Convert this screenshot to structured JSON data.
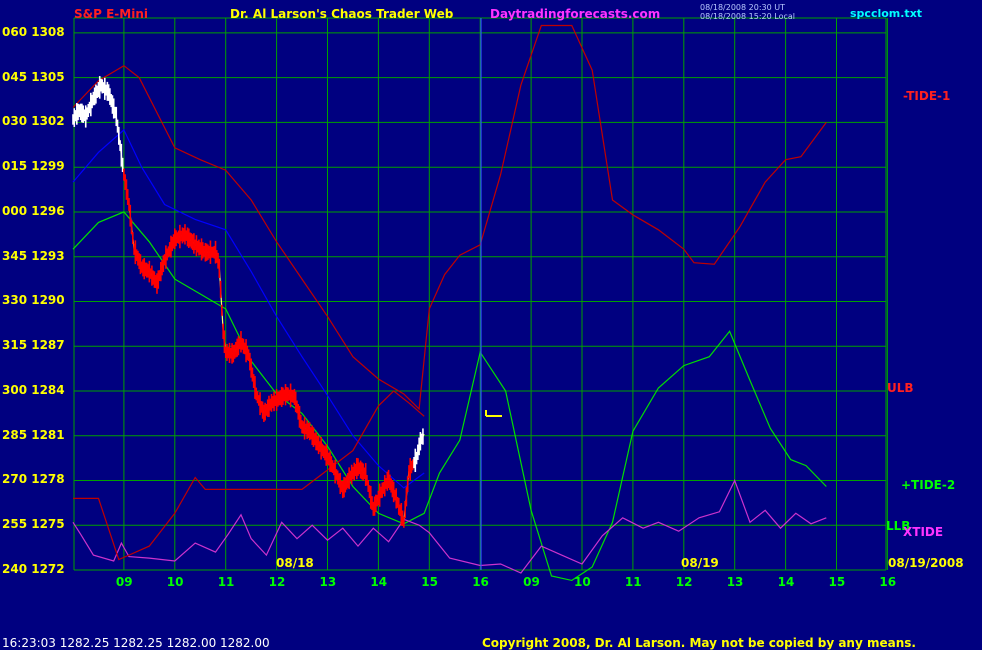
{
  "header": {
    "instrument": "S&P E-Mini",
    "title": "Dr. Al Larson's Chaos Trader Web",
    "site": "Daytradingforecasts.com",
    "stamp1": "08/18/2008 20:30 UT",
    "stamp2": "08/18/2008 15:20 Local",
    "filename": "spcclom.txt"
  },
  "footer": {
    "quote": "16:23:03  1282.25 1282.25 1282.00 1282.00",
    "copyright": "Copyright 2008, Dr. Al Larson. May not be copied by any means."
  },
  "labels": {
    "tide1": "-TIDE-1",
    "ulb": "ULB",
    "tide2": "+TIDE-2",
    "llb": "LLB",
    "xtide": "XTIDE",
    "date1": "08/18",
    "date2": "08/19",
    "date3": "08/19/2008"
  },
  "colors": {
    "background": "#000080",
    "grid": "#00a000",
    "price": "#ff0000",
    "tide1": "#c00000",
    "tide2": "#00e000",
    "xtide": "#cc33cc",
    "ma": "#0000ff",
    "label_yellow": "#ffff00"
  },
  "chart_data": {
    "type": "line",
    "title": "S&P E-Mini",
    "ylabels": [
      {
        "angle": "060",
        "price": 1308
      },
      {
        "angle": "045",
        "price": 1305
      },
      {
        "angle": "030",
        "price": 1302
      },
      {
        "angle": "015",
        "price": 1299
      },
      {
        "angle": "000",
        "price": 1296
      },
      {
        "angle": "345",
        "price": 1293
      },
      {
        "angle": "330",
        "price": 1290
      },
      {
        "angle": "315",
        "price": 1287
      },
      {
        "angle": "300",
        "price": 1284
      },
      {
        "angle": "285",
        "price": 1281
      },
      {
        "angle": "270",
        "price": 1278
      },
      {
        "angle": "255",
        "price": 1275
      },
      {
        "angle": "240",
        "price": 1272
      }
    ],
    "ylim": [
      1272,
      1308
    ],
    "xlabels": [
      "09",
      "10",
      "11",
      "12",
      "13",
      "14",
      "15",
      "16",
      "09",
      "10",
      "11",
      "12",
      "13",
      "14",
      "15",
      "16"
    ],
    "series": [
      {
        "name": "price",
        "values": [
          [
            0,
            1302.2
          ],
          [
            0.12,
            1302.8
          ],
          [
            0.25,
            1302.4
          ],
          [
            0.4,
            1303.6
          ],
          [
            0.55,
            1304.5
          ],
          [
            0.7,
            1304
          ],
          [
            0.85,
            1302.4
          ],
          [
            1,
            1298.5
          ],
          [
            1.1,
            1296.5
          ],
          [
            1.2,
            1293.5
          ],
          [
            1.35,
            1292.3
          ],
          [
            1.5,
            1292
          ],
          [
            1.65,
            1291.2
          ],
          [
            1.8,
            1292.8
          ],
          [
            2,
            1294.2
          ],
          [
            2.2,
            1294.5
          ],
          [
            2.4,
            1293.8
          ],
          [
            2.6,
            1293.3
          ],
          [
            2.8,
            1293.3
          ],
          [
            2.87,
            1292.5
          ],
          [
            2.95,
            1288
          ],
          [
            3,
            1286.6
          ],
          [
            3.15,
            1286.5
          ],
          [
            3.3,
            1287.3
          ],
          [
            3.45,
            1286.4
          ],
          [
            3.6,
            1283.8
          ],
          [
            3.75,
            1282.5
          ],
          [
            3.9,
            1283.2
          ],
          [
            4.05,
            1283.5
          ],
          [
            4.2,
            1283.8
          ],
          [
            4.35,
            1283.6
          ],
          [
            4.5,
            1281.6
          ],
          [
            4.65,
            1281.3
          ],
          [
            4.8,
            1280.5
          ],
          [
            5,
            1279.6
          ],
          [
            5.15,
            1278.6
          ],
          [
            5.3,
            1277.4
          ],
          [
            5.45,
            1278.3
          ],
          [
            5.6,
            1278.9
          ],
          [
            5.75,
            1278.4
          ],
          [
            5.9,
            1276.1
          ],
          [
            6.05,
            1277.2
          ],
          [
            6.2,
            1278.1
          ],
          [
            6.35,
            1276.8
          ],
          [
            6.5,
            1275.2
          ],
          [
            6.6,
            1278.6
          ],
          [
            6.75,
            1279.5
          ],
          [
            6.82,
            1280.6
          ],
          [
            6.9,
            1281.1
          ]
        ]
      },
      {
        "name": "TIDE-1",
        "values": [
          [
            0,
            1303
          ],
          [
            0.5,
            1304.8
          ],
          [
            1,
            1305.8
          ],
          [
            1.3,
            1305
          ],
          [
            2,
            1300.3
          ],
          [
            2.5,
            1299.5
          ],
          [
            3,
            1298.8
          ],
          [
            3.5,
            1296.8
          ],
          [
            4,
            1294
          ],
          [
            4.5,
            1291.5
          ],
          [
            5,
            1289
          ],
          [
            5.5,
            1286.3
          ],
          [
            6,
            1284.8
          ],
          [
            6.5,
            1283.8
          ],
          [
            6.8,
            1282.8
          ],
          [
            7,
            1289.5
          ],
          [
            7.3,
            1291.8
          ],
          [
            7.6,
            1293.1
          ],
          [
            8,
            1293.8
          ],
          [
            8.4,
            1298.5
          ],
          [
            8.8,
            1304.5
          ],
          [
            9.2,
            1308.5
          ],
          [
            9.8,
            1308.5
          ],
          [
            10.2,
            1305.5
          ],
          [
            10.6,
            1296.8
          ],
          [
            11,
            1295.8
          ],
          [
            11.5,
            1294.8
          ],
          [
            12,
            1293.5
          ],
          [
            12.2,
            1292.6
          ],
          [
            12.6,
            1292.5
          ],
          [
            13.1,
            1295
          ],
          [
            13.6,
            1298
          ],
          [
            14,
            1299.5
          ],
          [
            14.3,
            1299.7
          ],
          [
            14.8,
            1302
          ]
        ]
      },
      {
        "name": "TIDE-2",
        "values": [
          [
            0,
            1293.5
          ],
          [
            0.5,
            1295.3
          ],
          [
            1,
            1296
          ],
          [
            1.5,
            1294
          ],
          [
            2,
            1291.5
          ],
          [
            2.5,
            1290.5
          ],
          [
            3,
            1289.5
          ],
          [
            3.5,
            1286
          ],
          [
            4,
            1283.8
          ],
          [
            4.5,
            1282.5
          ],
          [
            5,
            1280.3
          ],
          [
            5.5,
            1277.6
          ],
          [
            6,
            1275.8
          ],
          [
            6.5,
            1275.1
          ],
          [
            6.9,
            1275.8
          ],
          [
            7.2,
            1278.5
          ],
          [
            7.6,
            1280.7
          ],
          [
            8,
            1286.6
          ],
          [
            8.5,
            1284
          ],
          [
            9,
            1276
          ],
          [
            9.4,
            1271.6
          ],
          [
            9.8,
            1271.3
          ],
          [
            10.2,
            1272.2
          ],
          [
            10.6,
            1275.2
          ],
          [
            11,
            1281.3
          ],
          [
            11.5,
            1284.2
          ],
          [
            12,
            1285.7
          ],
          [
            12.5,
            1286.3
          ],
          [
            12.9,
            1288
          ],
          [
            13.3,
            1284.7
          ],
          [
            13.7,
            1281.5
          ],
          [
            14.1,
            1279.4
          ],
          [
            14.4,
            1279
          ],
          [
            14.8,
            1277.6
          ]
        ]
      },
      {
        "name": "XTIDE",
        "values": [
          [
            0,
            1275.2
          ],
          [
            0.15,
            1274.4
          ],
          [
            0.4,
            1273
          ],
          [
            0.8,
            1272.6
          ],
          [
            0.95,
            1273.8
          ],
          [
            1.1,
            1272.9
          ],
          [
            1.5,
            1272.8
          ],
          [
            2,
            1272.6
          ],
          [
            2.4,
            1273.8
          ],
          [
            2.8,
            1273.2
          ],
          [
            3.05,
            1274.4
          ],
          [
            3.3,
            1275.7
          ],
          [
            3.5,
            1274.1
          ],
          [
            3.8,
            1273
          ],
          [
            4.1,
            1275.2
          ],
          [
            4.4,
            1274.1
          ],
          [
            4.7,
            1275
          ],
          [
            5,
            1274
          ],
          [
            5.3,
            1274.8
          ],
          [
            5.6,
            1273.6
          ],
          [
            5.9,
            1274.8
          ],
          [
            6.2,
            1273.9
          ],
          [
            6.5,
            1275.4
          ],
          [
            6.8,
            1275
          ],
          [
            7,
            1274.5
          ],
          [
            7.4,
            1272.8
          ],
          [
            8,
            1272.3
          ],
          [
            8.4,
            1272.4
          ],
          [
            8.8,
            1271.8
          ],
          [
            9.2,
            1273.6
          ],
          [
            9.6,
            1273
          ],
          [
            10,
            1272.4
          ],
          [
            10.4,
            1274.3
          ],
          [
            10.8,
            1275.5
          ],
          [
            11.2,
            1274.8
          ],
          [
            11.5,
            1275.2
          ],
          [
            11.9,
            1274.6
          ],
          [
            12.3,
            1275.5
          ],
          [
            12.7,
            1275.9
          ],
          [
            13,
            1278
          ],
          [
            13.3,
            1275.2
          ],
          [
            13.6,
            1276
          ],
          [
            13.9,
            1274.8
          ],
          [
            14.2,
            1275.8
          ],
          [
            14.5,
            1275.1
          ],
          [
            14.8,
            1275.5
          ]
        ]
      },
      {
        "name": "MA",
        "values": [
          [
            0,
            1298
          ],
          [
            0.5,
            1300
          ],
          [
            1,
            1301.5
          ],
          [
            1.35,
            1299
          ],
          [
            1.8,
            1296.5
          ],
          [
            2.4,
            1295.5
          ],
          [
            3,
            1294.8
          ],
          [
            3.5,
            1292
          ],
          [
            4,
            1289
          ],
          [
            4.5,
            1286.3
          ],
          [
            5,
            1283.7
          ],
          [
            5.5,
            1281
          ],
          [
            6,
            1279
          ],
          [
            6.5,
            1277.5
          ],
          [
            6.9,
            1278.5
          ]
        ]
      },
      {
        "name": "hold",
        "values": [
          [
            0,
            1276.8
          ],
          [
            0.5,
            1276.8
          ],
          [
            0.9,
            1272.7
          ],
          [
            1.5,
            1273.6
          ],
          [
            2,
            1275.8
          ],
          [
            2.4,
            1278.2
          ],
          [
            2.6,
            1277.4
          ],
          [
            4.5,
            1277.4
          ],
          [
            5,
            1278.7
          ],
          [
            5.5,
            1280
          ],
          [
            6,
            1283
          ],
          [
            6.3,
            1284
          ],
          [
            6.6,
            1283.2
          ],
          [
            6.9,
            1282.3
          ]
        ]
      }
    ]
  }
}
